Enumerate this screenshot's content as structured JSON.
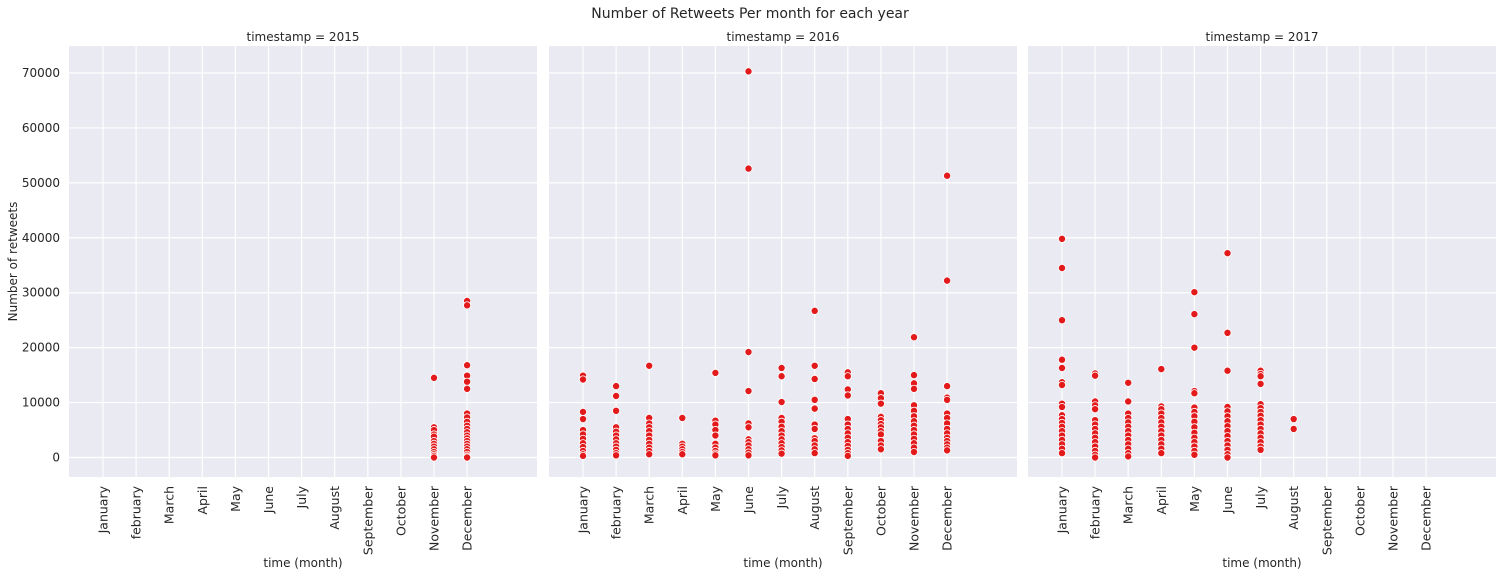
{
  "chart_data": {
    "type": "scatter",
    "title": "Number of Retweets Per month for each year",
    "xlabel": "time (month)",
    "ylabel": "Number of retweets",
    "ylim": [
      -3500,
      74000
    ],
    "yticks": [
      0,
      10000,
      20000,
      30000,
      40000,
      50000,
      60000,
      70000
    ],
    "grid": true,
    "marker_color": "#e31a1c",
    "background_color": "#eaeaf2",
    "categories": [
      "January",
      "february",
      "March",
      "April",
      "May",
      "June",
      "July",
      "August",
      "September",
      "October",
      "November",
      "December"
    ],
    "panels": [
      {
        "title": "timestamp = 2015",
        "points": {
          "November": [
            14500,
            5500,
            5000,
            4200,
            3800,
            3000,
            2500,
            2000,
            1500,
            1000,
            600,
            300,
            0
          ],
          "December": [
            28500,
            27700,
            16800,
            14900,
            13800,
            12500,
            8000,
            7300,
            6500,
            5800,
            5200,
            4600,
            4000,
            3500,
            3000,
            2500,
            2000,
            1500,
            1000,
            500,
            200,
            0
          ]
        }
      },
      {
        "title": "timestamp = 2016",
        "points": {
          "January": [
            14900,
            14200,
            8300,
            7000,
            5000,
            4200,
            3400,
            2600,
            1900,
            1200,
            600,
            300
          ],
          "february": [
            13000,
            11200,
            8500,
            5500,
            4700,
            4000,
            3300,
            2600,
            2000,
            1400,
            800,
            400
          ],
          "March": [
            16700,
            7200,
            6200,
            5500,
            4800,
            4000,
            3200,
            2500,
            1800,
            1200,
            600
          ],
          "April": [
            7200,
            2500,
            2000,
            1500,
            1000,
            600
          ],
          "May": [
            15400,
            6700,
            6000,
            5000,
            4000,
            2500,
            1800,
            1200,
            700,
            400
          ],
          "June": [
            70300,
            52600,
            19200,
            12100,
            6200,
            5500,
            3300,
            2800,
            2200,
            1500,
            900,
            400
          ],
          "July": [
            16300,
            14800,
            10100,
            7200,
            6500,
            5600,
            4800,
            4000,
            3300,
            2600,
            1900,
            1300,
            700
          ],
          "August": [
            26700,
            16700,
            14300,
            10500,
            8900,
            6000,
            5200,
            3500,
            3000,
            2200,
            1500,
            800
          ],
          "September": [
            15500,
            14800,
            12400,
            11300,
            7000,
            6000,
            5200,
            4400,
            3600,
            2800,
            2100,
            1400,
            800,
            300
          ],
          "October": [
            11700,
            10800,
            9800,
            7400,
            6800,
            6100,
            5500,
            4800,
            4200,
            3000,
            2200,
            1500
          ],
          "November": [
            21900,
            15000,
            13500,
            12500,
            9500,
            8500,
            7500,
            6600,
            5800,
            5000,
            4200,
            3400,
            2600,
            1800,
            1000
          ],
          "December": [
            51300,
            32200,
            13000,
            10900,
            10500,
            8000,
            7200,
            6200,
            5200,
            4400,
            3600,
            3000,
            2400,
            1800,
            1300
          ]
        }
      },
      {
        "title": "timestamp = 2017",
        "points": {
          "January": [
            39800,
            34500,
            25000,
            17800,
            16300,
            13700,
            13200,
            9800,
            9200,
            7700,
            7000,
            6300,
            5600,
            4800,
            4000,
            3200,
            2400,
            1600,
            800
          ],
          "february": [
            15300,
            14900,
            10200,
            9500,
            8800,
            6800,
            6000,
            5200,
            4400,
            3600,
            2800,
            2000,
            1200,
            500,
            0
          ],
          "March": [
            13600,
            10200,
            8000,
            7200,
            6400,
            5600,
            4800,
            4000,
            3200,
            2400,
            1600,
            800,
            200
          ],
          "April": [
            16100,
            9300,
            8800,
            8000,
            7200,
            6400,
            5600,
            4800,
            4000,
            3200,
            2400,
            1600,
            800
          ],
          "May": [
            30100,
            26100,
            20000,
            12100,
            11700,
            9100,
            8300,
            7500,
            6500,
            5500,
            4500,
            3600,
            2800,
            2000,
            1200,
            500
          ],
          "June": [
            37200,
            22700,
            15800,
            9200,
            8400,
            7500,
            6600,
            5700,
            4800,
            3900,
            3000,
            2200,
            1400,
            600,
            0
          ],
          "July": [
            15800,
            15200,
            14800,
            13400,
            9700,
            9000,
            8300,
            7600,
            6800,
            6000,
            5200,
            4400,
            3600,
            2800,
            2000,
            1400
          ],
          "August": [
            7000,
            5200
          ]
        }
      }
    ]
  }
}
